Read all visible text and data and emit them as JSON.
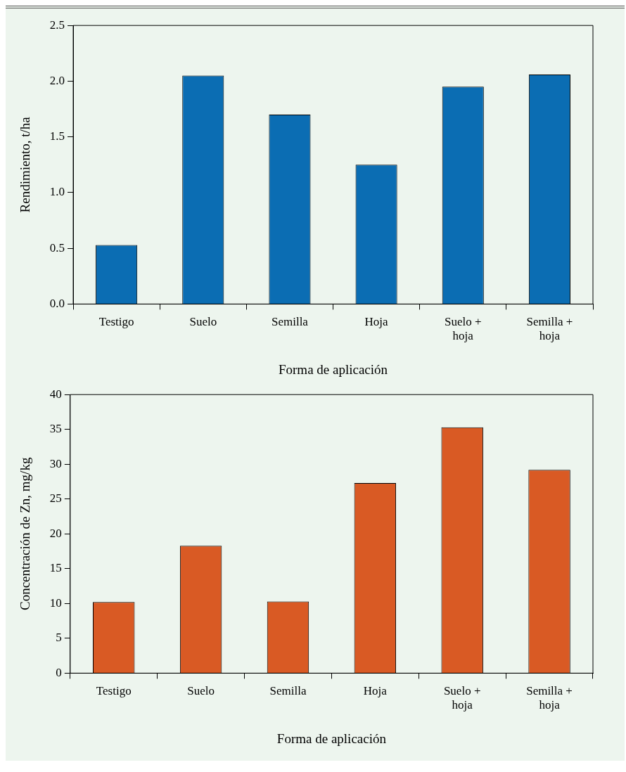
{
  "chart_data": [
    {
      "type": "bar",
      "categories": [
        "Testigo",
        "Suelo",
        "Semilla",
        "Hoja",
        "Suelo + hoja",
        "Semilla + hoja"
      ],
      "values": [
        0.53,
        2.05,
        1.7,
        1.25,
        1.95,
        2.06
      ],
      "color": "#0b6db3",
      "xlabel": "Forma de aplicación",
      "ylabel": "Rendimiento, t/ha",
      "ylim": [
        0,
        2.5
      ],
      "yticks": [
        {
          "value": 0,
          "label": "0.0"
        },
        {
          "value": 0.5,
          "label": "0.5"
        },
        {
          "value": 1,
          "label": "1.0"
        },
        {
          "value": 1.5,
          "label": "1.5"
        },
        {
          "value": 2,
          "label": "2.0"
        },
        {
          "value": 2.5,
          "label": "2.5"
        }
      ],
      "grid": false,
      "legend": false
    },
    {
      "type": "bar",
      "categories": [
        "Testigo",
        "Suelo",
        "Semilla",
        "Hoja",
        "Suelo + hoja",
        "Semilla + hoja"
      ],
      "values": [
        10.2,
        18.3,
        10.3,
        27.3,
        35.3,
        29.2
      ],
      "color": "#d95a24",
      "xlabel": "Forma de aplicación",
      "ylabel": "Concentración de Zn, mg/kg",
      "ylim": [
        0,
        40
      ],
      "yticks": [
        0,
        5,
        10,
        15,
        20,
        25,
        30,
        35,
        40
      ],
      "grid": false,
      "legend": false
    }
  ]
}
